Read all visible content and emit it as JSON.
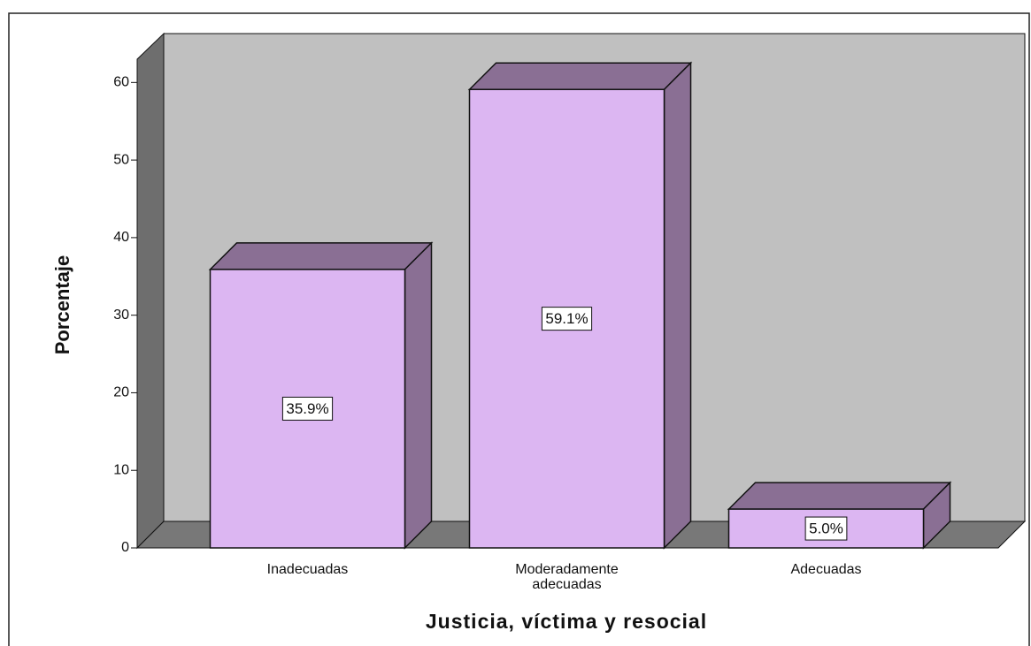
{
  "chart_data": {
    "type": "bar3d",
    "categories": [
      "Inadecuadas",
      "Moderadamente adecuadas",
      "Adecuadas"
    ],
    "values": [
      35.9,
      59.1,
      5.0
    ],
    "value_labels": [
      "35.9%",
      "59.1%",
      "5.0%"
    ],
    "color": "#dcb6f2",
    "ylim": [
      0,
      63
    ],
    "yticks": [
      0,
      10,
      20,
      30,
      40,
      50,
      60
    ],
    "y_label": "Porcentaje",
    "x_label": "Justicia, víctima y resocial"
  }
}
